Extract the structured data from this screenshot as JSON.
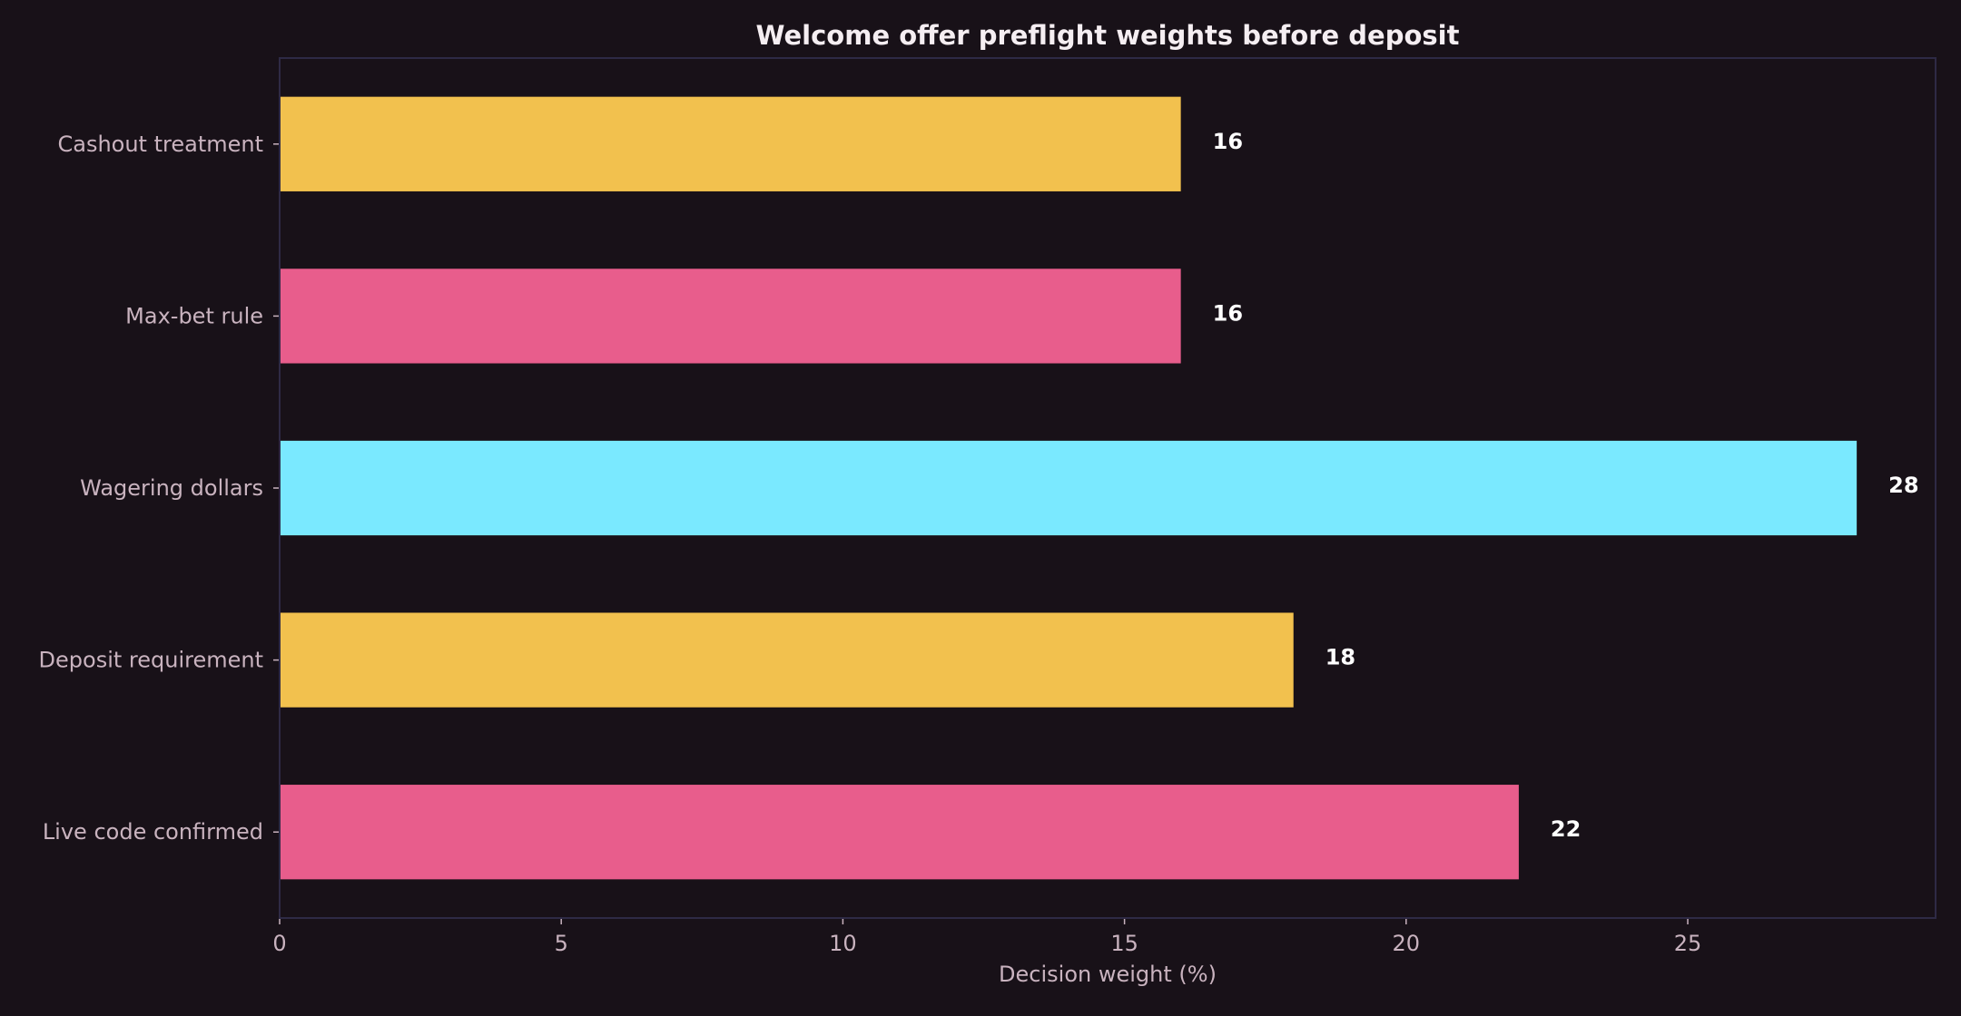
{
  "chart_data": {
    "type": "bar",
    "orientation": "horizontal",
    "title": "Welcome offer preflight weights before deposit",
    "xlabel": "Decision weight (%)",
    "ylabel": "",
    "xlim": [
      0,
      29.4
    ],
    "xticks": [
      0,
      5,
      10,
      15,
      20,
      25
    ],
    "grid": false,
    "categories": [
      "Cashout treatment",
      "Max-bet rule",
      "Wagering dollars",
      "Deposit requirement",
      "Live code confirmed"
    ],
    "values": [
      16,
      16,
      28,
      18,
      22
    ],
    "data_labels": [
      "16",
      "16",
      "28",
      "18",
      "22"
    ],
    "bar_colors": [
      "#f2c14e",
      "#e85d8c",
      "#7ae9ff",
      "#f2c14e",
      "#e85d8c"
    ]
  },
  "theme": {
    "background": "#181118",
    "frame_color": "#2e2a45",
    "title_color": "#f5eef2",
    "label_color": "#c9b3bf",
    "value_label_color": "#ffffff"
  }
}
